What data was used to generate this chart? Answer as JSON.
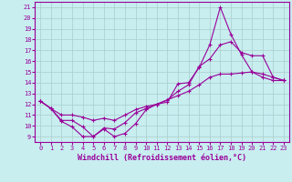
{
  "bg_color": "#c8eef0",
  "line_color": "#990099",
  "grid_color": "#aacccc",
  "xlabel": "Windchill (Refroidissement éolien,°C)",
  "ylabel_ticks": [
    9,
    10,
    11,
    12,
    13,
    14,
    15,
    16,
    17,
    18,
    19,
    20,
    21
  ],
  "xlabel_ticks": [
    0,
    1,
    2,
    3,
    4,
    5,
    6,
    7,
    8,
    9,
    10,
    11,
    12,
    13,
    14,
    15,
    16,
    17,
    18,
    19,
    20,
    21,
    22,
    23
  ],
  "xlim": [
    -0.5,
    23.5
  ],
  "ylim": [
    8.5,
    21.5
  ],
  "lines": [
    {
      "x": [
        0,
        1,
        2,
        3,
        4,
        5,
        6,
        7,
        8,
        9,
        10,
        11,
        12,
        13,
        14,
        15,
        16,
        17,
        18,
        19,
        20,
        21,
        22,
        23
      ],
      "y": [
        12.3,
        11.6,
        10.4,
        9.9,
        9.0,
        9.0,
        9.7,
        9.0,
        9.3,
        10.2,
        11.5,
        12.0,
        12.2,
        13.9,
        14.0,
        15.4,
        17.5,
        21.0,
        18.5,
        16.6,
        15.0,
        14.5,
        14.2,
        14.2
      ]
    },
    {
      "x": [
        0,
        1,
        2,
        3,
        4,
        5,
        6,
        7,
        8,
        9,
        10,
        11,
        12,
        13,
        14,
        15,
        16,
        17,
        18,
        19,
        20,
        21,
        22,
        23
      ],
      "y": [
        12.3,
        11.6,
        10.5,
        10.5,
        9.9,
        9.0,
        9.8,
        9.7,
        10.3,
        11.2,
        11.6,
        12.0,
        12.4,
        13.2,
        13.8,
        15.5,
        16.2,
        17.5,
        17.8,
        16.8,
        16.5,
        16.5,
        14.5,
        14.2
      ]
    },
    {
      "x": [
        0,
        1,
        2,
        3,
        4,
        5,
        6,
        7,
        8,
        9,
        10,
        11,
        12,
        13,
        14,
        15,
        16,
        17,
        18,
        19,
        20,
        21,
        22,
        23
      ],
      "y": [
        12.3,
        11.6,
        11.0,
        11.0,
        10.8,
        10.5,
        10.7,
        10.5,
        11.0,
        11.5,
        11.8,
        12.0,
        12.4,
        12.8,
        13.2,
        13.8,
        14.5,
        14.8,
        14.8,
        14.9,
        15.0,
        14.8,
        14.5,
        14.2
      ]
    }
  ],
  "tick_fontsize": 5,
  "xlabel_fontsize": 6,
  "marker_size": 2.0,
  "line_width": 0.8
}
